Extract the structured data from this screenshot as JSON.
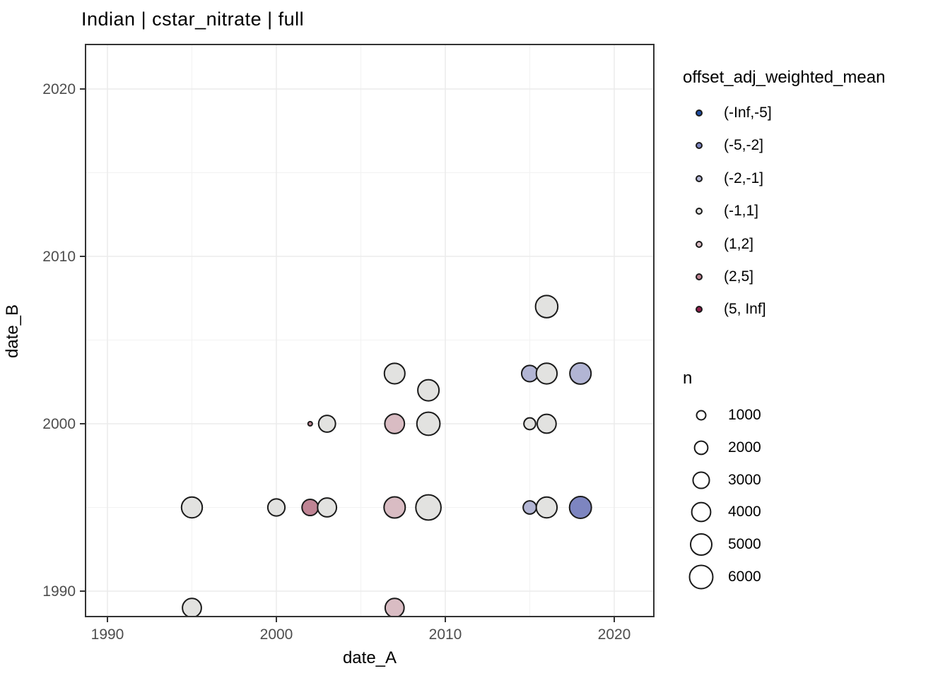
{
  "chart_data": {
    "type": "scatter",
    "title": "Indian | cstar_nitrate | full",
    "xlabel": "date_A",
    "ylabel": "date_B",
    "x_ticks": [
      1990,
      2000,
      2010,
      2020
    ],
    "y_ticks": [
      1990,
      2000,
      2010,
      2020
    ],
    "x_minor_ticks": [
      1995,
      2005,
      2015
    ],
    "y_minor_ticks": [
      1995,
      2005,
      2015
    ],
    "xlim": [
      1988.7,
      2022.4
    ],
    "ylim": [
      1988.3,
      2022.7
    ],
    "grid": true,
    "legend_position": "right",
    "points": [
      {
        "date_A": 1995,
        "date_B": 1989,
        "n": 4000,
        "bin": "(-1,1]"
      },
      {
        "date_A": 1995,
        "date_B": 1995,
        "n": 4800,
        "bin": "(-1,1]"
      },
      {
        "date_A": 2000,
        "date_B": 1995,
        "n": 3300,
        "bin": "(-1,1]"
      },
      {
        "date_A": 2002,
        "date_B": 1995,
        "n": 3000,
        "bin": "(2,5]"
      },
      {
        "date_A": 2003,
        "date_B": 1995,
        "n": 4000,
        "bin": "(-1,1]"
      },
      {
        "date_A": 2002,
        "date_B": 2000,
        "n": 250,
        "bin": "(2,5]"
      },
      {
        "date_A": 2003,
        "date_B": 2000,
        "n": 3200,
        "bin": "(-1,1]"
      },
      {
        "date_A": 2007,
        "date_B": 1989,
        "n": 4000,
        "bin": "(1,2]"
      },
      {
        "date_A": 2007,
        "date_B": 1995,
        "n": 5000,
        "bin": "(1,2]"
      },
      {
        "date_A": 2007,
        "date_B": 2000,
        "n": 4300,
        "bin": "(1,2]"
      },
      {
        "date_A": 2007,
        "date_B": 2003,
        "n": 4700,
        "bin": "(-1,1]"
      },
      {
        "date_A": 2009,
        "date_B": 1995,
        "n": 7000,
        "bin": "(-1,1]"
      },
      {
        "date_A": 2009,
        "date_B": 2000,
        "n": 5900,
        "bin": "(-1,1]"
      },
      {
        "date_A": 2009,
        "date_B": 2002,
        "n": 5000,
        "bin": "(-1,1]"
      },
      {
        "date_A": 2015,
        "date_B": 1995,
        "n": 2000,
        "bin": "(-2,-1]"
      },
      {
        "date_A": 2015,
        "date_B": 2000,
        "n": 1600,
        "bin": "(-1,1]"
      },
      {
        "date_A": 2015,
        "date_B": 2003,
        "n": 3000,
        "bin": "(-2,-1]"
      },
      {
        "date_A": 2016,
        "date_B": 1995,
        "n": 4800,
        "bin": "(-1,1]"
      },
      {
        "date_A": 2016,
        "date_B": 2000,
        "n": 4000,
        "bin": "(-1,1]"
      },
      {
        "date_A": 2016,
        "date_B": 2003,
        "n": 4800,
        "bin": "(-1,1]"
      },
      {
        "date_A": 2016,
        "date_B": 2007,
        "n": 5500,
        "bin": "(-1,1]"
      },
      {
        "date_A": 2018,
        "date_B": 1995,
        "n": 5300,
        "bin": "(-5,-2]"
      },
      {
        "date_A": 2018,
        "date_B": 2003,
        "n": 5000,
        "bin": "(-2,-1]"
      }
    ],
    "color_legend": {
      "title": "offset_adj_weighted_mean",
      "entries": [
        {
          "label": "(-Inf,-5]",
          "color": "#1E4CA1"
        },
        {
          "label": "(-5,-2]",
          "color": "#7D85C0"
        },
        {
          "label": "(-2,-1]",
          "color": "#B2B5D4"
        },
        {
          "label": "(-1,1]",
          "color": "#E2E2E0"
        },
        {
          "label": "(1,2]",
          "color": "#D9BCC3"
        },
        {
          "label": "(2,5]",
          "color": "#BF8494"
        },
        {
          "label": "(5, Inf]",
          "color": "#8F1D4B"
        }
      ]
    },
    "size_legend": {
      "title": "n",
      "entries": [
        {
          "label": "1000",
          "n": 1000
        },
        {
          "label": "2000",
          "n": 2000
        },
        {
          "label": "3000",
          "n": 3000
        },
        {
          "label": "4000",
          "n": 4000
        },
        {
          "label": "5000",
          "n": 5000
        },
        {
          "label": "6000",
          "n": 6000
        }
      ]
    },
    "colors": {
      "point_stroke": "#1a1a1a",
      "grid_major": "#ebebeb",
      "grid_minor": "#f2f2f2",
      "panel_border": "#333333",
      "panel_bg": "#ffffff",
      "tick_label": "#4d4d4d",
      "text": "#000000"
    }
  }
}
